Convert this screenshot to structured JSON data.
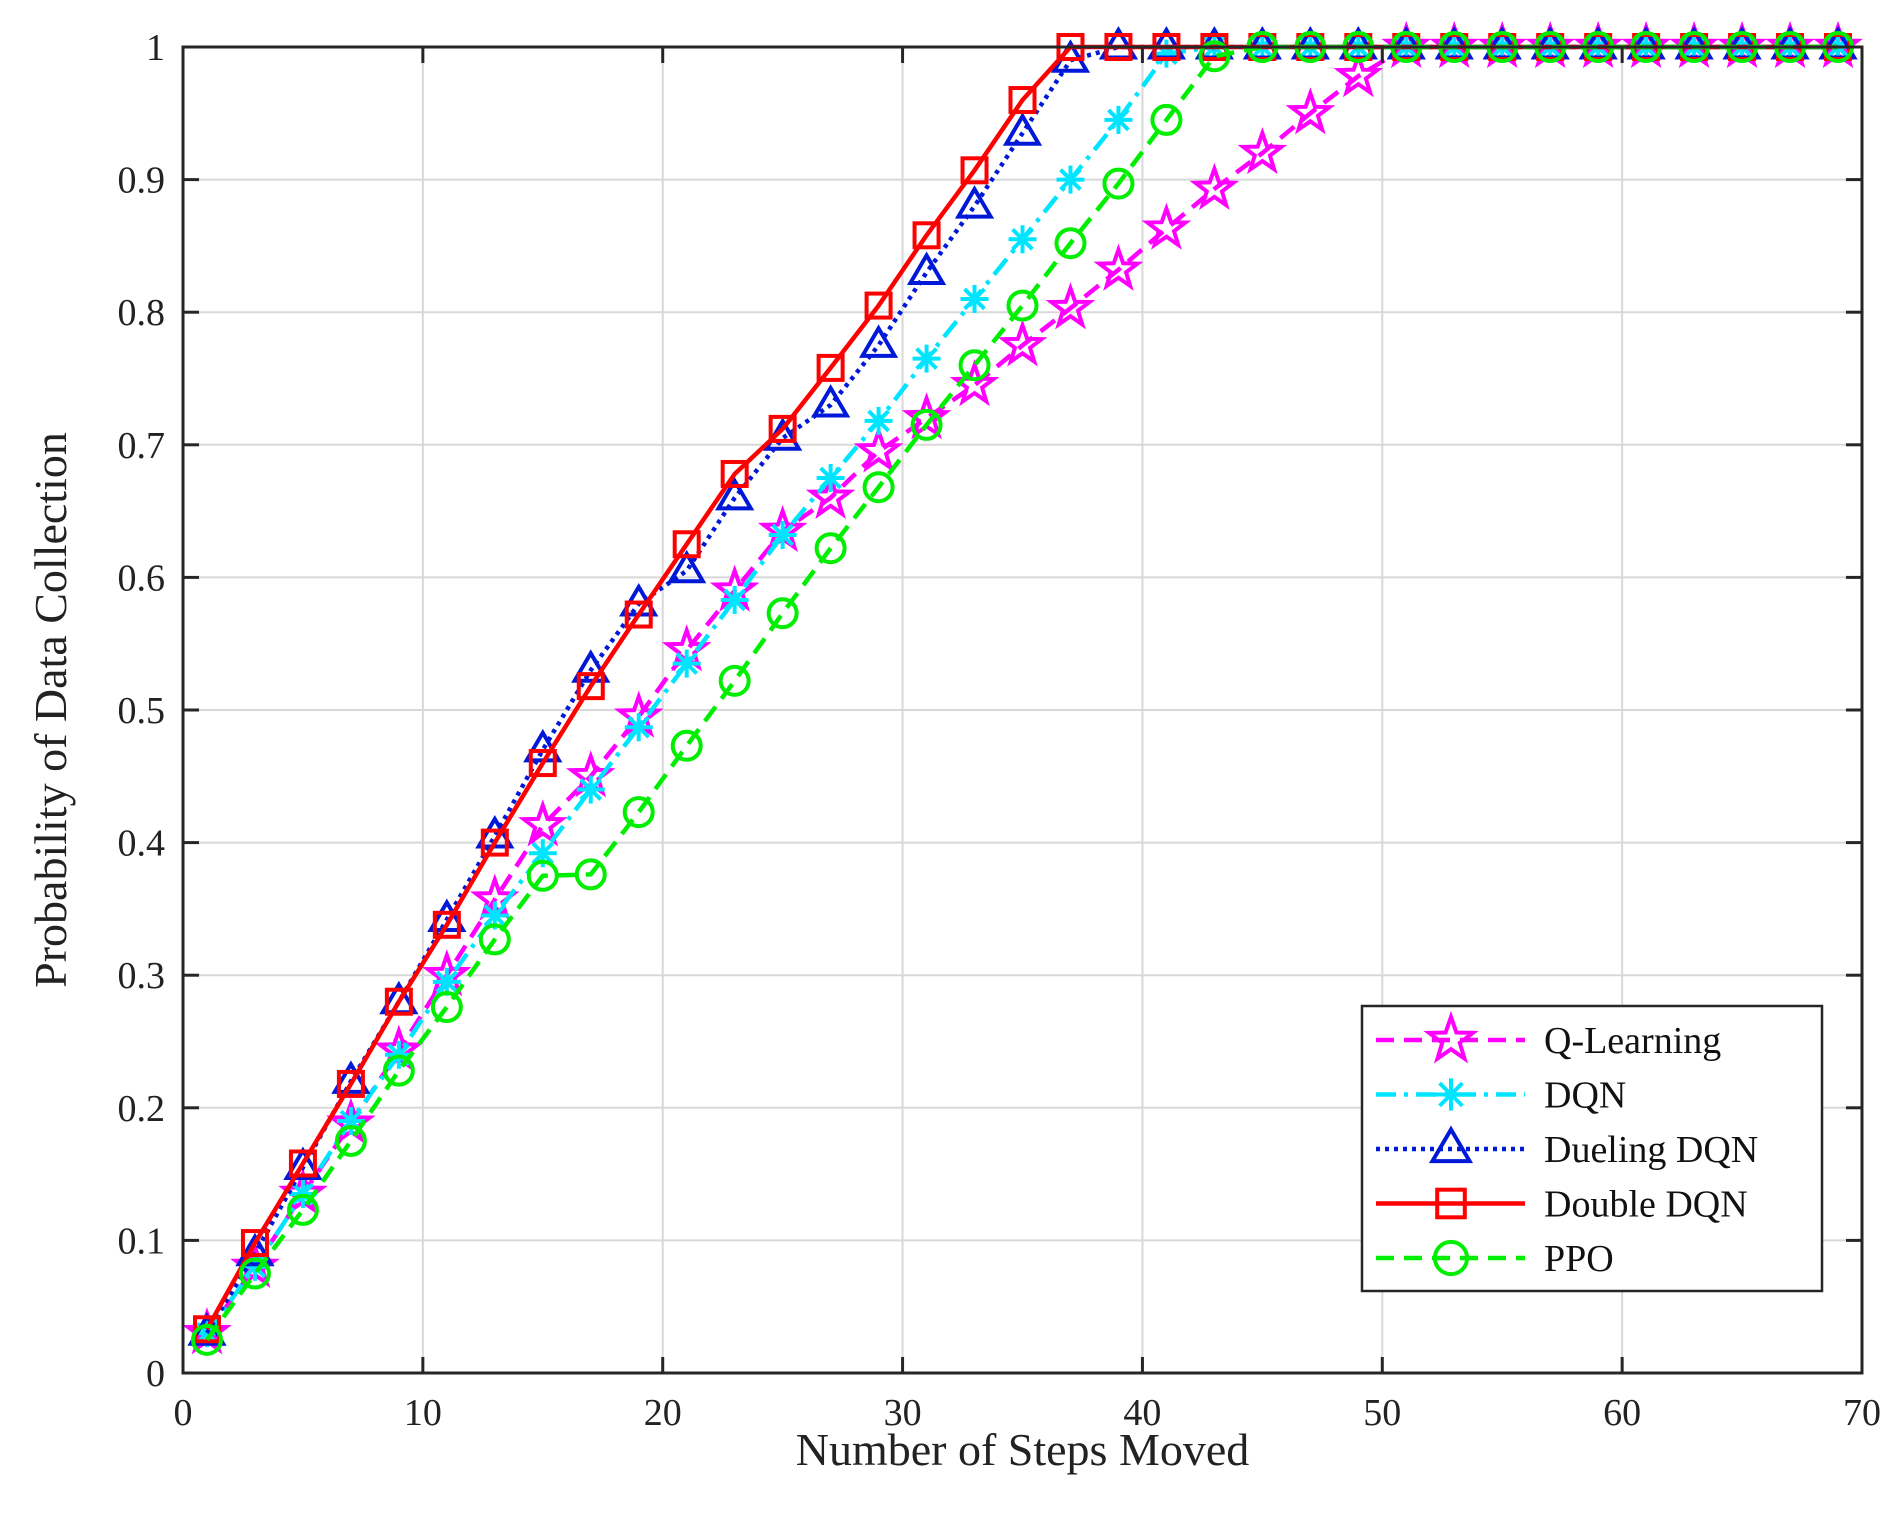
{
  "chart_data": {
    "type": "line",
    "title": "",
    "xlabel": "Number of Steps Moved",
    "ylabel": "Probability of Data Collection",
    "xlim": [
      0,
      70
    ],
    "ylim": [
      0,
      1
    ],
    "xticks": [
      0,
      10,
      20,
      30,
      40,
      50,
      60,
      70
    ],
    "xtick_labels": [
      "0",
      "10",
      "20",
      "30",
      "40",
      "50",
      "60",
      "70"
    ],
    "yticks": [
      0,
      0.1,
      0.2,
      0.3,
      0.4,
      0.5,
      0.6,
      0.7,
      0.8,
      0.9,
      1
    ],
    "ytick_labels": [
      "0",
      "0.1",
      "0.2",
      "0.3",
      "0.4",
      "0.5",
      "0.6",
      "0.7",
      "0.8",
      "0.9",
      "1"
    ],
    "grid": true,
    "legend_position": "bottom-right",
    "x": [
      1,
      3,
      5,
      7,
      9,
      11,
      13,
      15,
      17,
      19,
      21,
      23,
      25,
      27,
      29,
      31,
      33,
      35,
      37,
      39,
      41,
      43,
      45,
      47,
      49,
      51,
      53,
      55,
      57,
      59,
      61,
      63,
      65,
      67,
      69
    ],
    "series": [
      {
        "name": "Q-Learning",
        "color": "#ff00ff",
        "line_style": "dashed",
        "marker": "star",
        "values": [
          0.03,
          0.08,
          0.135,
          0.188,
          0.243,
          0.3,
          0.357,
          0.413,
          0.45,
          0.495,
          0.545,
          0.59,
          0.635,
          0.66,
          0.695,
          0.72,
          0.745,
          0.775,
          0.803,
          0.832,
          0.863,
          0.893,
          0.92,
          0.95,
          0.978,
          1,
          1,
          1,
          1,
          1,
          1,
          1,
          1,
          1,
          1
        ]
      },
      {
        "name": "DQN",
        "color": "#00e5ff",
        "line_style": "dash-dot",
        "marker": "asterisk",
        "values": [
          0.03,
          0.08,
          0.135,
          0.19,
          0.24,
          0.295,
          0.345,
          0.392,
          0.44,
          0.487,
          0.535,
          0.583,
          0.632,
          0.675,
          0.718,
          0.765,
          0.81,
          0.855,
          0.9,
          0.945,
          0.995,
          1,
          1,
          1,
          1,
          1,
          1,
          1,
          1,
          1,
          1,
          1,
          1,
          1,
          1
        ]
      },
      {
        "name": "Dueling DQN",
        "color": "#0018d8",
        "line_style": "dotted",
        "marker": "triangle",
        "values": [
          0.03,
          0.09,
          0.155,
          0.22,
          0.28,
          0.342,
          0.405,
          0.47,
          0.53,
          0.58,
          0.605,
          0.66,
          0.705,
          0.73,
          0.775,
          0.83,
          0.88,
          0.935,
          0.99,
          1,
          1,
          1,
          1,
          1,
          1,
          1,
          1,
          1,
          1,
          1,
          1,
          1,
          1,
          1,
          1
        ]
      },
      {
        "name": "Double DQN",
        "color": "#ff0000",
        "line_style": "solid",
        "marker": "square",
        "values": [
          0.033,
          0.098,
          0.158,
          0.218,
          0.28,
          0.338,
          0.4,
          0.46,
          0.518,
          0.572,
          0.625,
          0.678,
          0.712,
          0.758,
          0.805,
          0.858,
          0.907,
          0.96,
          1,
          1,
          1,
          1,
          1,
          1,
          1,
          1,
          1,
          1,
          1,
          1,
          1,
          1,
          1,
          1,
          1
        ]
      },
      {
        "name": "PPO",
        "color": "#00ee00",
        "line_style": "dashed",
        "marker": "circle",
        "values": [
          0.025,
          0.075,
          0.123,
          0.175,
          0.228,
          0.276,
          0.327,
          0.375,
          0.376,
          0.423,
          0.473,
          0.522,
          0.573,
          0.622,
          0.668,
          0.715,
          0.76,
          0.805,
          0.852,
          0.897,
          0.945,
          0.993,
          1,
          1,
          1,
          1,
          1,
          1,
          1,
          1,
          1,
          1,
          1,
          1,
          1
        ]
      }
    ]
  }
}
